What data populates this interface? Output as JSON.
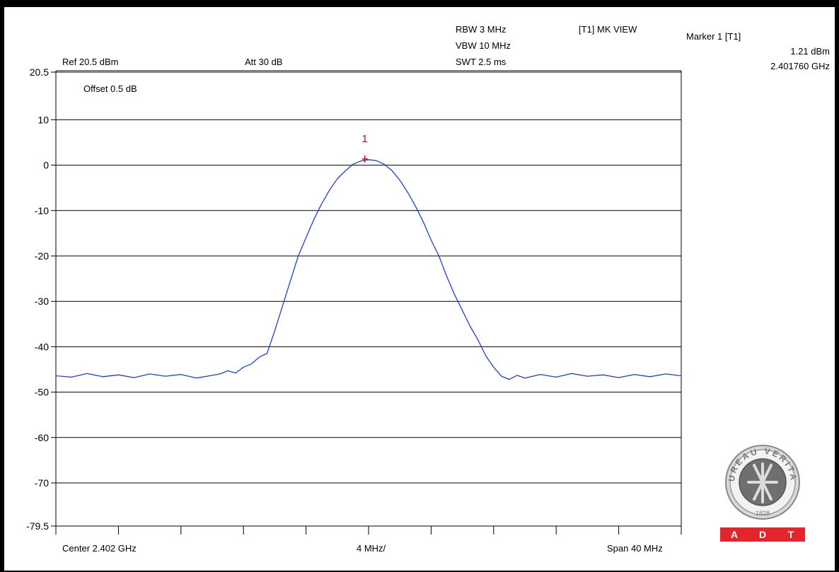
{
  "header": {
    "ref": "Ref 20.5 dBm",
    "att": "Att  30 dB",
    "rbw": "RBW 3 MHz",
    "vbw": "VBW 10 MHz",
    "swt": "SWT 2.5 ms",
    "mode": "[T1] MK VIEW",
    "offset": "Offset 0.5 dB"
  },
  "marker_readout": {
    "title": "Marker 1 [T1]",
    "level": "1.21 dBm",
    "freq": "2.401760 GHz"
  },
  "footer": {
    "center": "Center 2.402 GHz",
    "div": "4 MHz/",
    "span": "Span 40 MHz"
  },
  "logo": {
    "name": "BUREAU VERITAS",
    "year": "1828",
    "bar_letters": [
      "A",
      "D",
      "T"
    ],
    "bar_color": "#e3262c"
  },
  "colors": {
    "trace": "#1f3fd8",
    "marker": "#e0000a",
    "grid": "#000000"
  },
  "chart_data": {
    "type": "line",
    "title": "",
    "xlabel": "",
    "ylabel": "",
    "x_unit": "MHz offset from center (-20..20)",
    "xlim": [
      -20,
      20
    ],
    "ylim": [
      -79.5,
      20.5
    ],
    "y_ticks": [
      20.5,
      10,
      0,
      -10,
      -20,
      -30,
      -40,
      -50,
      -60,
      -70,
      -79.5
    ],
    "y_tick_labels": [
      "20.5",
      "10",
      "0",
      "-10",
      "-20",
      "-30",
      "-40",
      "-50",
      "-60",
      "-70",
      "-79.5"
    ],
    "x_ticks": [
      -20,
      -16,
      -12,
      -8,
      -4,
      0,
      4,
      8,
      12,
      16,
      20
    ],
    "grid": true,
    "series": [
      {
        "x": [
          -20,
          -19,
          -18,
          -17,
          -16,
          -15,
          -14,
          -13,
          -12,
          -11,
          -10,
          -9.5,
          -9,
          -8.5,
          -8,
          -7.5,
          -7,
          -6.5,
          -6,
          -5.5,
          -5,
          -4.5,
          -4,
          -3.5,
          -3,
          -2.5,
          -2,
          -1.5,
          -1,
          -0.5,
          0,
          0.5,
          1,
          1.5,
          2,
          2.5,
          3,
          3.5,
          4,
          4.5,
          5,
          5.5,
          6,
          6.5,
          7,
          7.5,
          8,
          8.5,
          9,
          9.5,
          10,
          11,
          12,
          13,
          14,
          15,
          16,
          17,
          18,
          19,
          20
        ],
        "y": [
          -46.4,
          -46.7,
          -45.9,
          -46.6,
          -46.2,
          -46.8,
          -46,
          -46.5,
          -46.1,
          -46.9,
          -46.3,
          -46,
          -45.3,
          -45.8,
          -44.5,
          -43.8,
          -42.3,
          -41.5,
          -36.5,
          -31,
          -25.5,
          -20,
          -16,
          -12,
          -8.5,
          -5.5,
          -3,
          -1.3,
          0.2,
          0.9,
          1.21,
          1.0,
          0.2,
          -1.2,
          -3.3,
          -6,
          -9,
          -12.5,
          -16.5,
          -20,
          -24.5,
          -28.5,
          -32,
          -35.5,
          -38.5,
          -42,
          -44.5,
          -46.5,
          -47.2,
          -46.3,
          -46.9,
          -46.1,
          -46.7,
          -45.9,
          -46.5,
          -46.2,
          -46.8,
          -46.1,
          -46.6,
          -46,
          -46.4
        ]
      }
    ],
    "marker": {
      "label": "1",
      "x": -0.24,
      "y": 1.21
    }
  }
}
